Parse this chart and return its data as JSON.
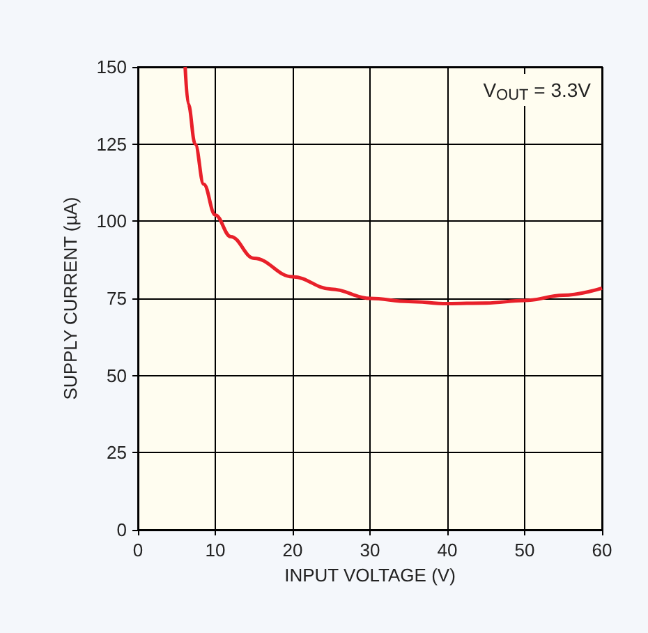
{
  "chart_data": {
    "type": "line",
    "xlabel": "INPUT VOLTAGE (V)",
    "ylabel": "SUPPLY CURRENT (µA)",
    "annotations": [
      "V$_{OUT}$ = 3.3V"
    ],
    "x": [
      6.1,
      6.5,
      7.4,
      8.5,
      10,
      12,
      15,
      20,
      25,
      30,
      35,
      40,
      45,
      50,
      55,
      60
    ],
    "series": [
      {
        "color": "#e8202a",
        "values": [
          150,
          138,
          125,
          112,
          102,
          95,
          88,
          82,
          78,
          75,
          74,
          73.3,
          73.5,
          74.3,
          76,
          78.3
        ]
      }
    ],
    "xlim": [
      0,
      60
    ],
    "xticks": [
      0,
      10,
      20,
      30,
      40,
      50,
      60
    ],
    "ylim": [
      0,
      150
    ],
    "yticks": [
      0,
      25,
      50,
      75,
      100,
      125,
      150
    ],
    "grid": true,
    "marker": "none",
    "line_style": "solid"
  }
}
